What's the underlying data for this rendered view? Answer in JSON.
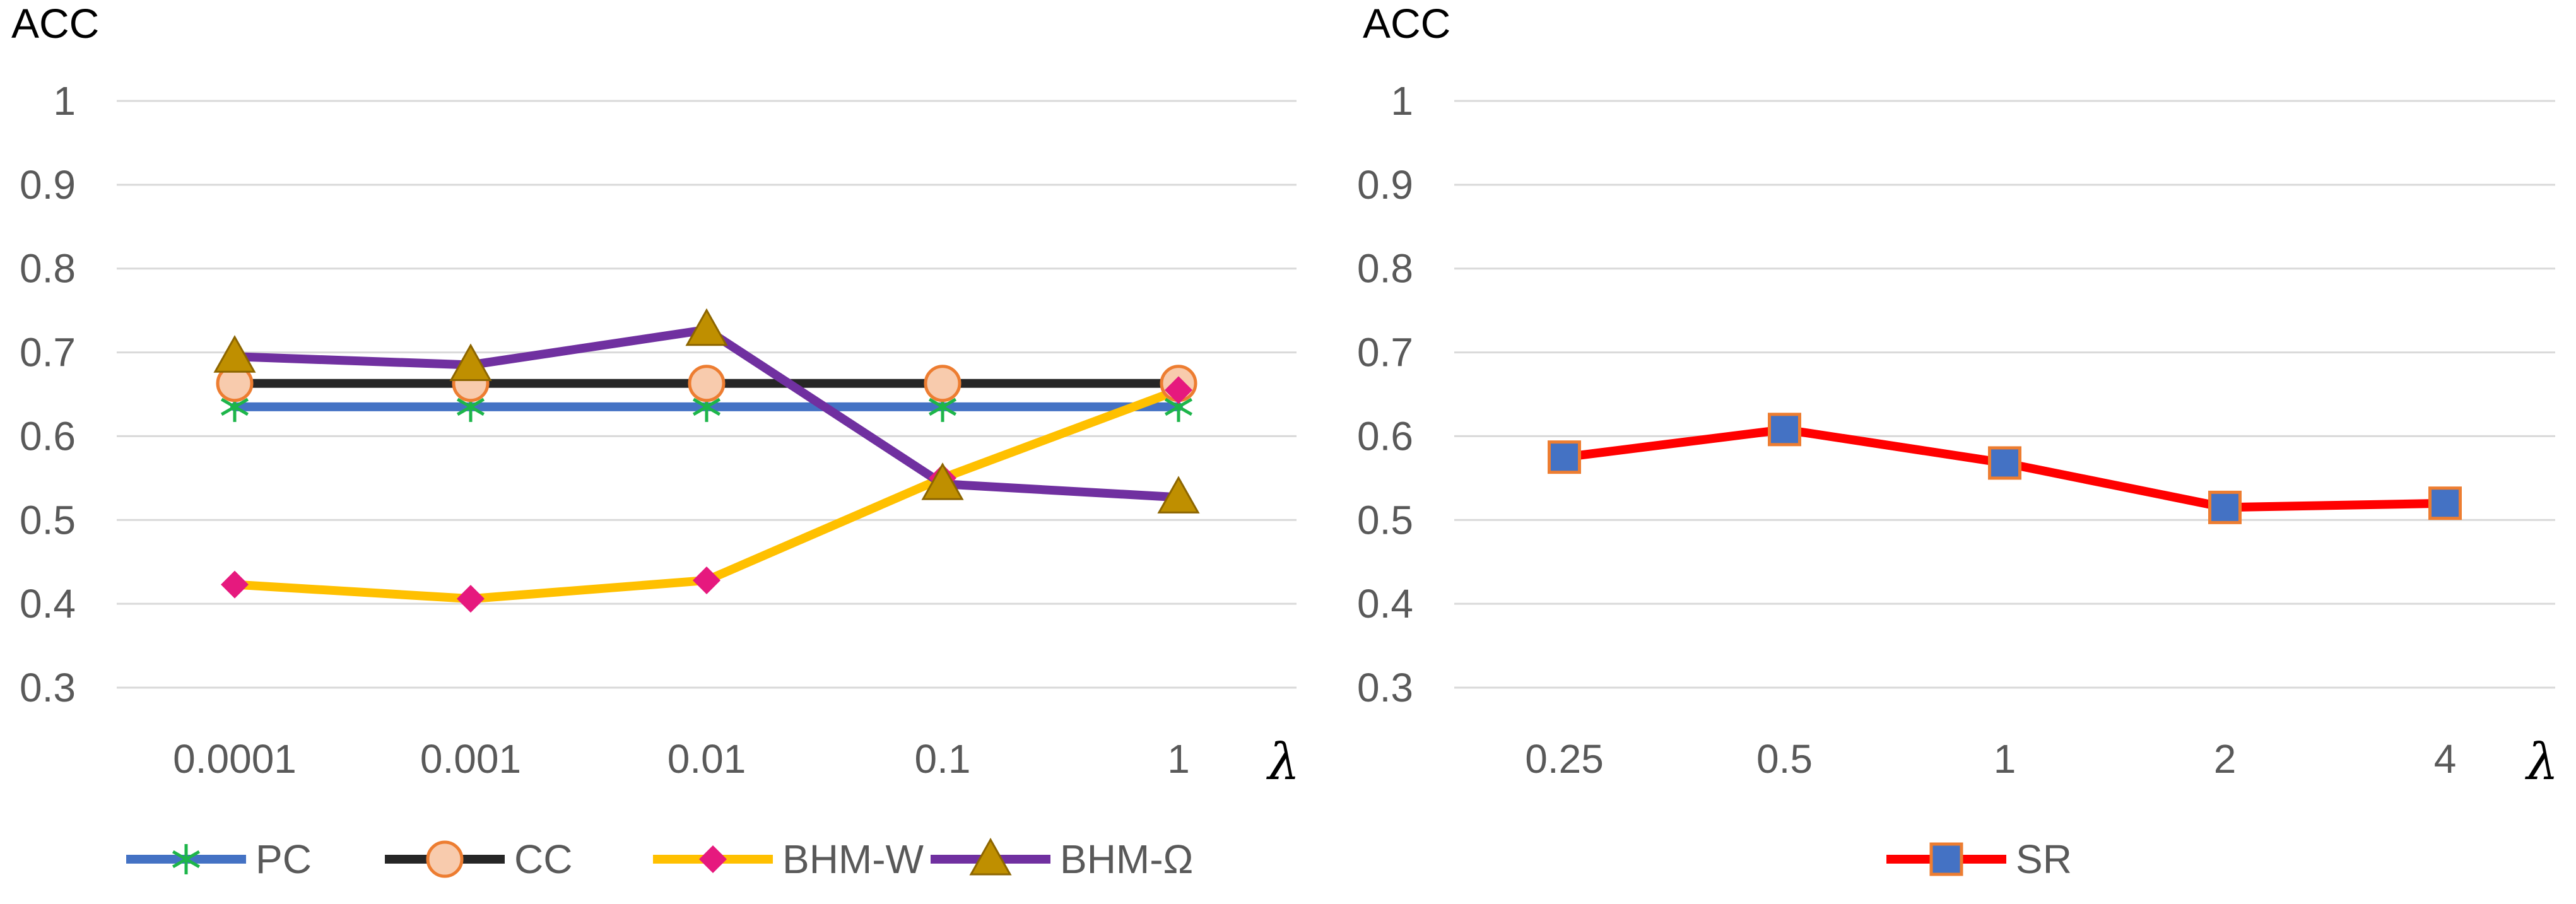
{
  "chart_data": [
    {
      "type": "line",
      "title": "ACC",
      "xlabel": "λ",
      "ylabel": "ACC",
      "categories": [
        "0.0001",
        "0.001",
        "0.01",
        "0.1",
        "1"
      ],
      "ylim": [
        0.3,
        1.0
      ],
      "yticks": [
        "1",
        "0.9",
        "0.8",
        "0.7",
        "0.6",
        "0.5",
        "0.4",
        "0.3"
      ],
      "ytick_values": [
        1.0,
        0.9,
        0.8,
        0.7,
        0.6,
        0.5,
        0.4,
        0.3
      ],
      "grid": true,
      "legend_position": "bottom",
      "series": [
        {
          "name": "PC",
          "values": [
            0.635,
            0.635,
            0.635,
            0.635,
            0.635
          ],
          "color": "#4472C4",
          "marker": "star",
          "marker_color": "#1DB54A"
        },
        {
          "name": "CC",
          "values": [
            0.663,
            0.663,
            0.663,
            0.663,
            0.663
          ],
          "color": "#262626",
          "marker": "circle",
          "marker_color": "#F8CBAD"
        },
        {
          "name": "BHM-W",
          "values": [
            0.423,
            0.406,
            0.428,
            0.55,
            0.655
          ],
          "color": "#FFC000",
          "marker": "diamond",
          "marker_color": "#E6197E"
        },
        {
          "name": "BHM-Ω",
          "values": [
            0.695,
            0.685,
            0.727,
            0.543,
            0.527
          ],
          "color": "#7030A0",
          "marker": "triangle",
          "marker_color": "#BF8F00"
        }
      ]
    },
    {
      "type": "line",
      "title": "ACC",
      "xlabel": "λ",
      "ylabel": "ACC",
      "categories": [
        "0.25",
        "0.5",
        "1",
        "2",
        "4"
      ],
      "ylim": [
        0.3,
        1.0
      ],
      "yticks": [
        "1",
        "0.9",
        "0.8",
        "0.7",
        "0.6",
        "0.5",
        "0.4",
        "0.3"
      ],
      "ytick_values": [
        1.0,
        0.9,
        0.8,
        0.7,
        0.6,
        0.5,
        0.4,
        0.3
      ],
      "grid": true,
      "legend_position": "bottom",
      "series": [
        {
          "name": "SR",
          "values": [
            0.575,
            0.608,
            0.568,
            0.515,
            0.52
          ],
          "color": "#FF0000",
          "marker": "square",
          "marker_color": "#4472C4"
        }
      ]
    }
  ]
}
